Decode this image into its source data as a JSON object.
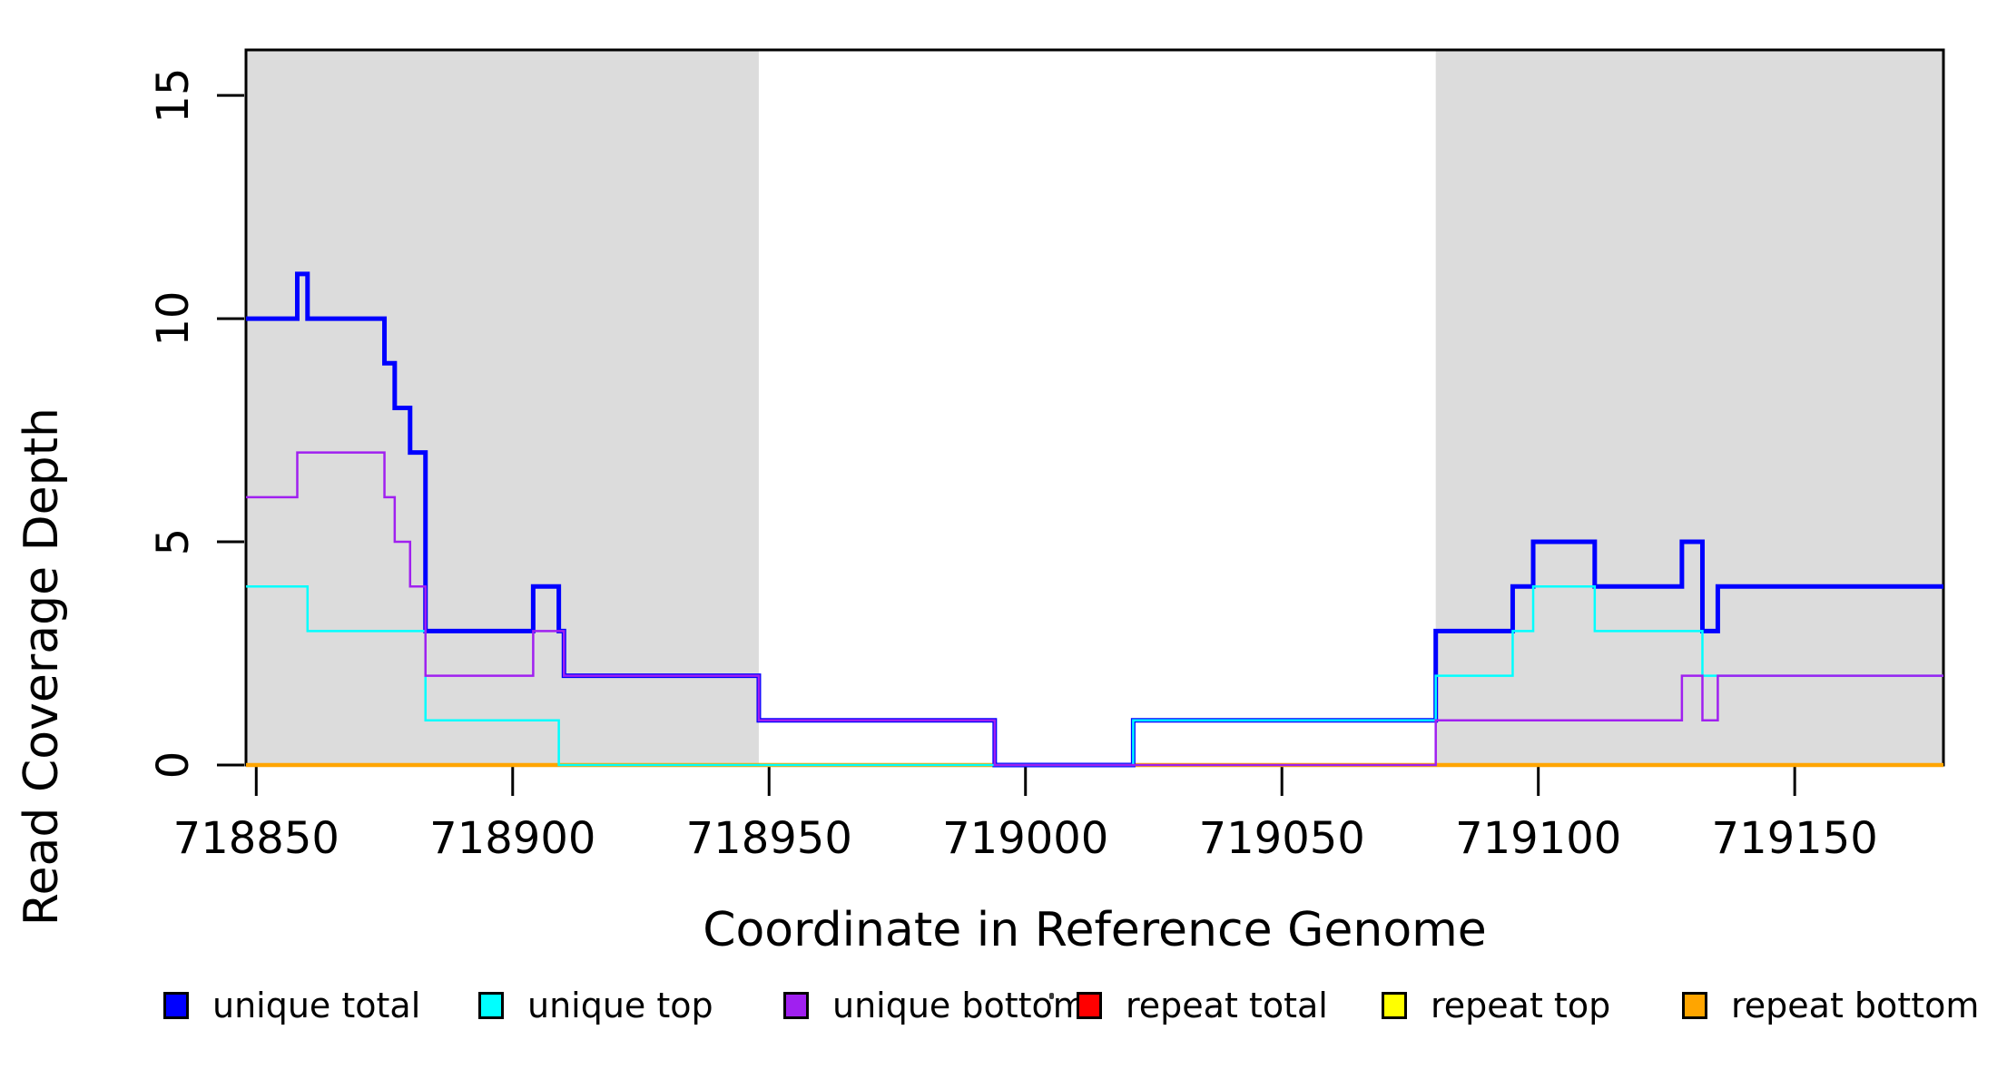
{
  "figure": {
    "xlabel": "Coordinate in Reference Genome",
    "ylabel": "Read Coverage Depth",
    "background_color": "#FFFFFF",
    "frame_color": "#000000",
    "shaded_region_color": "#DCDCDC"
  },
  "chart_data": {
    "type": "line",
    "subtype": "step-coverage",
    "title": "",
    "xlabel": "Coordinate in Reference Genome",
    "ylabel": "Read Coverage Depth",
    "xlim": [
      718848,
      719179
    ],
    "ylim": [
      0,
      16.02
    ],
    "grid": false,
    "x_tick_values": [
      718850,
      718900,
      718950,
      719000,
      719050,
      719100,
      719150
    ],
    "x_tick_labels": [
      "718850",
      "718900",
      "718950",
      "719000",
      "719050",
      "719100",
      "719150"
    ],
    "y_tick_values": [
      0,
      5,
      10,
      15
    ],
    "y_tick_labels": [
      "0",
      "5",
      "10",
      "15"
    ],
    "shaded_regions": [
      [
        718848,
        718948
      ],
      [
        719080,
        719179
      ]
    ],
    "series": [
      {
        "name": "repeat total",
        "color": "#FF0000",
        "width": 2.5,
        "steps": [
          [
            718848,
            0
          ]
        ]
      },
      {
        "name": "repeat top",
        "color": "#FFFF00",
        "width": 2.5,
        "steps": [
          [
            718848,
            0
          ]
        ]
      },
      {
        "name": "repeat bottom",
        "color": "#FFA500",
        "width": 4.5,
        "steps": [
          [
            718848,
            0
          ]
        ]
      },
      {
        "name": "unique total",
        "color": "#0000FF",
        "width": 5,
        "steps": [
          [
            718848,
            10
          ],
          [
            718858,
            11
          ],
          [
            718860,
            10
          ],
          [
            718875,
            9
          ],
          [
            718877,
            8
          ],
          [
            718880,
            7
          ],
          [
            718883,
            3
          ],
          [
            718904,
            4
          ],
          [
            718909,
            3
          ],
          [
            718910,
            2
          ],
          [
            718948,
            1
          ],
          [
            718994,
            0
          ],
          [
            719021,
            1
          ],
          [
            719080,
            3
          ],
          [
            719095,
            4
          ],
          [
            719099,
            5
          ],
          [
            719111,
            4
          ],
          [
            719128,
            5
          ],
          [
            719132,
            3
          ],
          [
            719135,
            4
          ]
        ]
      },
      {
        "name": "unique top",
        "color": "#00FFFF",
        "width": 2.5,
        "steps": [
          [
            718848,
            4
          ],
          [
            718860,
            3
          ],
          [
            718883,
            1
          ],
          [
            718909,
            0
          ],
          [
            719021,
            1
          ],
          [
            719080,
            2
          ],
          [
            719095,
            3
          ],
          [
            719099,
            4
          ],
          [
            719111,
            3
          ],
          [
            719132,
            2
          ]
        ]
      },
      {
        "name": "unique bottom",
        "color": "#A020F0",
        "width": 2.5,
        "steps": [
          [
            718848,
            6
          ],
          [
            718858,
            7
          ],
          [
            718875,
            6
          ],
          [
            718877,
            5
          ],
          [
            718880,
            4
          ],
          [
            718883,
            2
          ],
          [
            718904,
            3
          ],
          [
            718910,
            2
          ],
          [
            718948,
            1
          ],
          [
            718994,
            0
          ],
          [
            719080,
            1
          ],
          [
            719128,
            2
          ],
          [
            719132,
            1
          ],
          [
            719135,
            2
          ]
        ]
      }
    ],
    "legend_position": "bottom"
  },
  "legend": {
    "items": [
      {
        "label": "unique total",
        "color": "#0000FF"
      },
      {
        "label": "unique top",
        "color": "#00FFFF"
      },
      {
        "label": "unique bottom",
        "color": "#A020F0"
      },
      {
        "label": "repeat total",
        "color": "#FF0000"
      },
      {
        "label": "repeat top",
        "color": "#FFFF00"
      },
      {
        "label": "repeat bottom",
        "color": "#FFA500"
      }
    ]
  }
}
